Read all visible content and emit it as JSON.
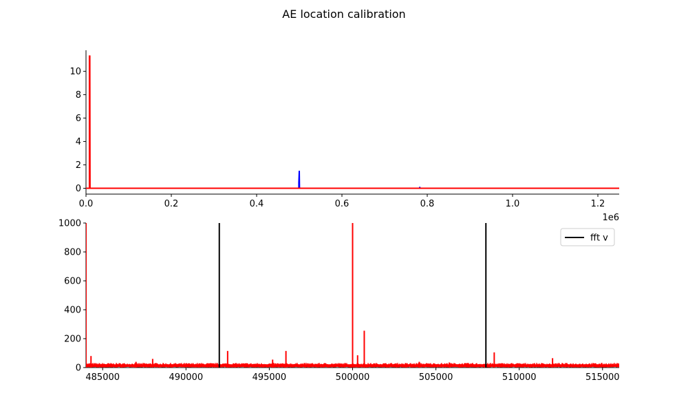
{
  "figure": {
    "title": "AE location calibration"
  },
  "colors": {
    "red": "#ff0000",
    "blue": "#0000ff",
    "black": "#000000"
  },
  "chart_data": [
    {
      "type": "line",
      "title": "",
      "xlabel": "",
      "ylabel": "",
      "xlim": [
        0,
        1250000
      ],
      "ylim": [
        -0.5,
        11.8
      ],
      "x_offset_label": "1e6",
      "x_ticks": [
        0,
        200000,
        400000,
        600000,
        800000,
        1000000,
        1200000
      ],
      "x_tick_labels": [
        "0.0",
        "0.2",
        "0.4",
        "0.6",
        "0.8",
        "1.0",
        "1.2"
      ],
      "y_ticks": [
        0,
        2,
        4,
        6,
        8,
        10
      ],
      "y_tick_labels": [
        "0",
        "2",
        "4",
        "6",
        "8",
        "10"
      ],
      "grid": false,
      "series": [
        {
          "color": "#0000ff",
          "points": [
            [
              0,
              0
            ],
            [
              499000,
              0
            ],
            [
              499000,
              0.5
            ],
            [
              500000,
              1.5
            ],
            [
              500500,
              0.1
            ],
            [
              501000,
              0
            ],
            [
              782000,
              0
            ],
            [
              782500,
              0.12
            ],
            [
              783000,
              0
            ],
            [
              1250000,
              0
            ]
          ]
        },
        {
          "color": "#ff0000",
          "points": [
            [
              0,
              0
            ],
            [
              8000,
              0
            ],
            [
              8000,
              11.3
            ],
            [
              9000,
              11.3
            ],
            [
              9500,
              0
            ],
            [
              1250000,
              0
            ]
          ]
        }
      ]
    },
    {
      "type": "line",
      "title": "",
      "xlabel": "",
      "ylabel": "",
      "xlim": [
        484000,
        516000
      ],
      "ylim": [
        0,
        1000
      ],
      "x_ticks": [
        485000,
        490000,
        495000,
        500000,
        505000,
        510000,
        515000
      ],
      "x_tick_labels": [
        "485000",
        "490000",
        "495000",
        "500000",
        "505000",
        "510000",
        "515000"
      ],
      "y_ticks": [
        0,
        200,
        400,
        600,
        800,
        1000
      ],
      "y_tick_labels": [
        "0",
        "200",
        "400",
        "600",
        "800",
        "1000"
      ],
      "grid": false,
      "legend": {
        "position": "upper-right",
        "entries": [
          {
            "label": "fft v",
            "color": "#000000"
          }
        ]
      },
      "vlines": [
        {
          "x": 492000,
          "ymin": 0,
          "ymax": 1000,
          "color": "#000000"
        },
        {
          "x": 508000,
          "ymin": 0,
          "ymax": 1000,
          "color": "#000000"
        }
      ],
      "noise_band": {
        "color": "#ff0000",
        "baseline": 18,
        "max": 32,
        "x_start": 484000,
        "x_end": 516000
      },
      "spikes": [
        {
          "x": 484300,
          "y": 80
        },
        {
          "x": 487000,
          "y": 40
        },
        {
          "x": 488000,
          "y": 60
        },
        {
          "x": 492500,
          "y": 115
        },
        {
          "x": 495200,
          "y": 55
        },
        {
          "x": 496000,
          "y": 115
        },
        {
          "x": 500000,
          "y": 1000
        },
        {
          "x": 500300,
          "y": 85
        },
        {
          "x": 500700,
          "y": 255
        },
        {
          "x": 504000,
          "y": 40
        },
        {
          "x": 505800,
          "y": 35
        },
        {
          "x": 508500,
          "y": 105
        },
        {
          "x": 512000,
          "y": 65
        }
      ]
    }
  ]
}
